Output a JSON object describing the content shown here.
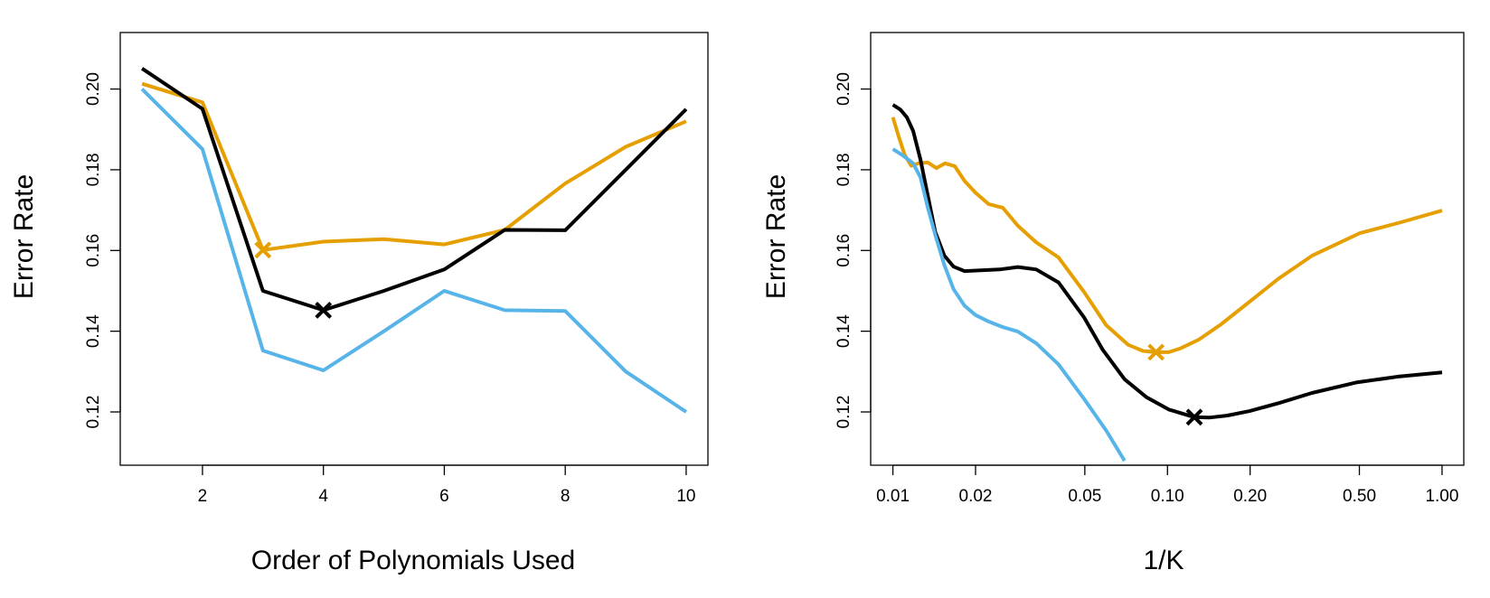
{
  "chart_data": [
    {
      "type": "line",
      "xlabel": "Order of Polynomials Used",
      "ylabel": "Error Rate",
      "xscale": "linear",
      "xlim": [
        0.64,
        10.36
      ],
      "ylim": [
        0.1068,
        0.214
      ],
      "xticks": [
        2,
        4,
        6,
        8,
        10
      ],
      "xtick_labels": [
        "2",
        "4",
        "6",
        "8",
        "10"
      ],
      "yticks": [
        0.12,
        0.14,
        0.16,
        0.18,
        0.2
      ],
      "ytick_labels": [
        "0.12",
        "0.14",
        "0.16",
        "0.18",
        "0.20"
      ],
      "grid": false,
      "legend": "none",
      "series": [
        {
          "color": "#E69F00",
          "x": [
            1,
            2,
            3,
            4,
            5,
            6,
            7,
            8,
            9,
            10
          ],
          "y": [
            0.2013,
            0.1967,
            0.1601,
            0.1622,
            0.1628,
            0.1615,
            0.1651,
            0.1766,
            0.1857,
            0.192
          ],
          "marker": {
            "x": 3,
            "y": 0.1601
          }
        },
        {
          "color": "#000000",
          "x": [
            1,
            2,
            3,
            4,
            5,
            6,
            7,
            8,
            9,
            10
          ],
          "y": [
            0.2051,
            0.1951,
            0.15,
            0.1452,
            0.15,
            0.1553,
            0.1651,
            0.165,
            0.18,
            0.195
          ],
          "marker": {
            "x": 4,
            "y": 0.1452
          }
        },
        {
          "color": "#56B4E9",
          "x": [
            1,
            2,
            3,
            4,
            5,
            6,
            7,
            8,
            9,
            10
          ],
          "y": [
            0.2,
            0.1851,
            0.1352,
            0.1303,
            0.14,
            0.15,
            0.1452,
            0.145,
            0.13,
            0.12
          ]
        }
      ]
    },
    {
      "type": "line",
      "xlabel": "1/K",
      "ylabel": "Error Rate",
      "xscale": "log",
      "xlim": [
        0.0083,
        1.2
      ],
      "ylim": [
        0.1068,
        0.214
      ],
      "xticks": [
        0.01,
        0.02,
        0.05,
        0.1,
        0.2,
        0.5,
        1.0
      ],
      "xtick_labels": [
        "0.01",
        "0.02",
        "0.05",
        "0.10",
        "0.20",
        "0.50",
        "1.00"
      ],
      "yticks": [
        0.12,
        0.14,
        0.16,
        0.18,
        0.2
      ],
      "ytick_labels": [
        "0.12",
        "0.14",
        "0.16",
        "0.18",
        "0.20"
      ],
      "grid": false,
      "legend": "none",
      "series": [
        {
          "color": "#E69F00",
          "x": [
            0.01,
            0.01047,
            0.01104,
            0.01167,
            0.0124,
            0.0134,
            0.0144,
            0.01549,
            0.0168,
            0.01825,
            0.02,
            0.0223,
            0.0251,
            0.02854,
            0.0333,
            0.0401,
            0.0497,
            0.0598,
            0.072,
            0.0815,
            0.0909,
            0.101,
            0.111,
            0.13,
            0.156,
            0.194,
            0.2547,
            0.336,
            0.502,
            0.7,
            1.0
          ],
          "y": [
            0.193,
            0.1885,
            0.1837,
            0.181,
            0.1816,
            0.1818,
            0.1804,
            0.1816,
            0.1809,
            0.1772,
            0.1743,
            0.1715,
            0.1706,
            0.1661,
            0.162,
            0.1583,
            0.1497,
            0.1415,
            0.1366,
            0.1351,
            0.1348,
            0.1348,
            0.1357,
            0.1379,
            0.1416,
            0.1467,
            0.1531,
            0.1587,
            0.1643,
            0.1669,
            0.1699
          ],
          "marker": {
            "x": 0.0909,
            "y": 0.1348
          }
        },
        {
          "color": "#000000",
          "x": [
            0.01,
            0.01064,
            0.01124,
            0.01185,
            0.0126,
            0.0134,
            0.01426,
            0.0154,
            0.01663,
            0.01825,
            0.02445,
            0.02854,
            0.0333,
            0.0401,
            0.0497,
            0.058,
            0.0698,
            0.084,
            0.101,
            0.1253,
            0.1418,
            0.1654,
            0.199,
            0.2547,
            0.336,
            0.487,
            0.7,
            1.0
          ],
          "y": [
            0.1961,
            0.1949,
            0.193,
            0.1896,
            0.1825,
            0.1736,
            0.1646,
            0.1587,
            0.156,
            0.1549,
            0.1553,
            0.1559,
            0.1553,
            0.1521,
            0.1434,
            0.1355,
            0.1281,
            0.1236,
            0.1206,
            0.1187,
            0.1186,
            0.1191,
            0.1202,
            0.1222,
            0.1247,
            0.1273,
            0.1288,
            0.1298
          ],
          "marker": {
            "x": 0.1253,
            "y": 0.1187
          }
        },
        {
          "color": "#56B4E9",
          "x": [
            0.01,
            0.01079,
            0.01185,
            0.0126,
            0.0134,
            0.01426,
            0.0154,
            0.01663,
            0.01825,
            0.02,
            0.0223,
            0.0252,
            0.02854,
            0.0333,
            0.0401,
            0.0497,
            0.0598,
            0.0698
          ],
          "y": [
            0.1851,
            0.1837,
            0.1816,
            0.1781,
            0.1706,
            0.1639,
            0.1564,
            0.1504,
            0.1463,
            0.144,
            0.1424,
            0.141,
            0.1399,
            0.137,
            0.1318,
            0.1232,
            0.1154,
            0.1079
          ]
        }
      ]
    }
  ]
}
